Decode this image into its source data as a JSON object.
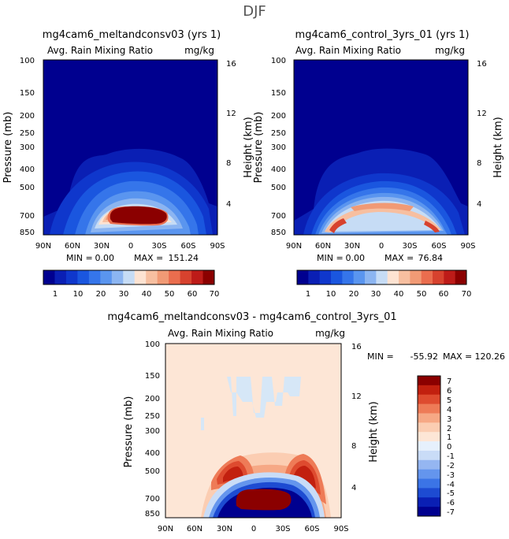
{
  "figure": {
    "season": "DJF"
  },
  "colors": {
    "full": [
      "#00008f",
      "#0a1fb4",
      "#0f37cc",
      "#1a56df",
      "#3575ea",
      "#5a95ef",
      "#8cb5f1",
      "#c6dcf5",
      "#fde3d2",
      "#f7bfa0",
      "#f19a75",
      "#ea6d4e",
      "#d7422e",
      "#bd1b18",
      "#8b0000"
    ],
    "diff": [
      "#00008f",
      "#0a1fb4",
      "#1d4bd2",
      "#3b74e6",
      "#6495ed",
      "#95b6f1",
      "#c9dcf7",
      "#e6f0fc",
      "#fde6d6",
      "#fbcdb2",
      "#f6a885",
      "#ee7b57",
      "#de4b2f",
      "#c2200f",
      "#8b0000"
    ],
    "diff_background": "#fde6d6",
    "diff_patch": "#d6e7f7"
  },
  "chart_data": [
    {
      "type": "heatmap",
      "title": "mg4cam6_meltandconsv03 (yrs 1)",
      "field": "Avg. Rain Mixing Ratio",
      "units": "mg/kg",
      "xlabel": "",
      "ylabel": "Pressure (mb)",
      "y2label": "Height (km)",
      "x_ticks": [
        "90N",
        "60N",
        "30N",
        "0",
        "30S",
        "60S",
        "90S"
      ],
      "y_ticks": [
        100,
        150,
        200,
        250,
        300,
        400,
        500,
        700,
        850
      ],
      "y2_ticks": [
        16,
        12,
        8,
        4
      ],
      "min_label": "MIN =",
      "min_value": "0.00",
      "max_label": "MAX =",
      "max_value": "151.24",
      "colorbar_labels": [
        "1",
        "10",
        "20",
        "30",
        "40",
        "50",
        "60",
        "70"
      ]
    },
    {
      "type": "heatmap",
      "title": "mg4cam6_control_3yrs_01 (yrs 1)",
      "field": "Avg. Rain Mixing Ratio",
      "units": "mg/kg",
      "xlabel": "",
      "ylabel": "Pressure (mb)",
      "y2label": "Height (km)",
      "x_ticks": [
        "90N",
        "60N",
        "30N",
        "0",
        "30S",
        "60S",
        "90S"
      ],
      "y_ticks": [
        100,
        150,
        200,
        250,
        300,
        400,
        500,
        700,
        850
      ],
      "y2_ticks": [
        16,
        12,
        8,
        4
      ],
      "min_label": "MIN =",
      "min_value": "0.00",
      "max_label": "MAX =",
      "max_value": "76.84",
      "colorbar_labels": [
        "1",
        "10",
        "20",
        "30",
        "40",
        "50",
        "60",
        "70"
      ]
    },
    {
      "type": "heatmap",
      "title": "mg4cam6_meltandconsv03 - mg4cam6_control_3yrs_01",
      "field": "Avg. Rain Mixing Ratio",
      "units": "mg/kg",
      "xlabel": "",
      "ylabel": "Pressure (mb)",
      "y2label": "Height (km)",
      "x_ticks": [
        "90N",
        "60N",
        "30N",
        "0",
        "30S",
        "60S",
        "90S"
      ],
      "y_ticks": [
        100,
        150,
        200,
        250,
        300,
        400,
        500,
        700,
        850
      ],
      "y2_ticks": [
        16,
        12,
        8,
        4
      ],
      "min_label": "MIN =",
      "min_value": "-55.92",
      "max_label": "MAX =",
      "max_value": "120.26",
      "colorbar_labels": [
        "7",
        "6",
        "5",
        "4",
        "3",
        "2",
        "1",
        "0",
        "-1",
        "-2",
        "-3",
        "-4",
        "-5",
        "-6",
        "-7"
      ]
    }
  ]
}
